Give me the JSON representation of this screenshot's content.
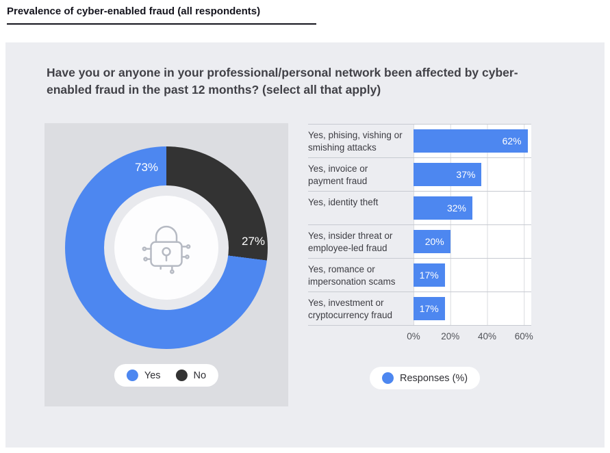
{
  "page": {
    "title": "Prevalence of cyber-enabled fraud (all respondents)"
  },
  "question": "Have you or anyone in your professional/personal network been affected by cyber-enabled fraud in the past 12 months? (select all that apply)",
  "colors": {
    "yes": "#4d87f0",
    "no": "#333333"
  },
  "chart_data": [
    {
      "type": "pie",
      "title": "Affected by cyber-enabled fraud (donut)",
      "labels": [
        "Yes",
        "No"
      ],
      "values": [
        73,
        27
      ],
      "value_labels": [
        "73%",
        "27%"
      ],
      "legend": [
        "Yes",
        "No"
      ],
      "center_icon": "padlock-icon"
    },
    {
      "type": "bar",
      "orientation": "horizontal",
      "categories": [
        "Yes, phising, vishing or smishing attacks",
        "Yes, invoice or payment fraud",
        "Yes, identity theft",
        "Yes, insider threat or employee-led fraud",
        "Yes, romance or impersonation scams",
        "Yes, investment or cryptocurrency fraud"
      ],
      "values": [
        62,
        37,
        32,
        20,
        17,
        17
      ],
      "value_labels": [
        "62%",
        "37%",
        "32%",
        "20%",
        "17%",
        "17%"
      ],
      "x_ticks": [
        "0%",
        "20%",
        "40%",
        "60%"
      ],
      "xlim": [
        0,
        64
      ],
      "legend": "Responses (%)",
      "grid": true,
      "legend_position": "bottom"
    }
  ]
}
